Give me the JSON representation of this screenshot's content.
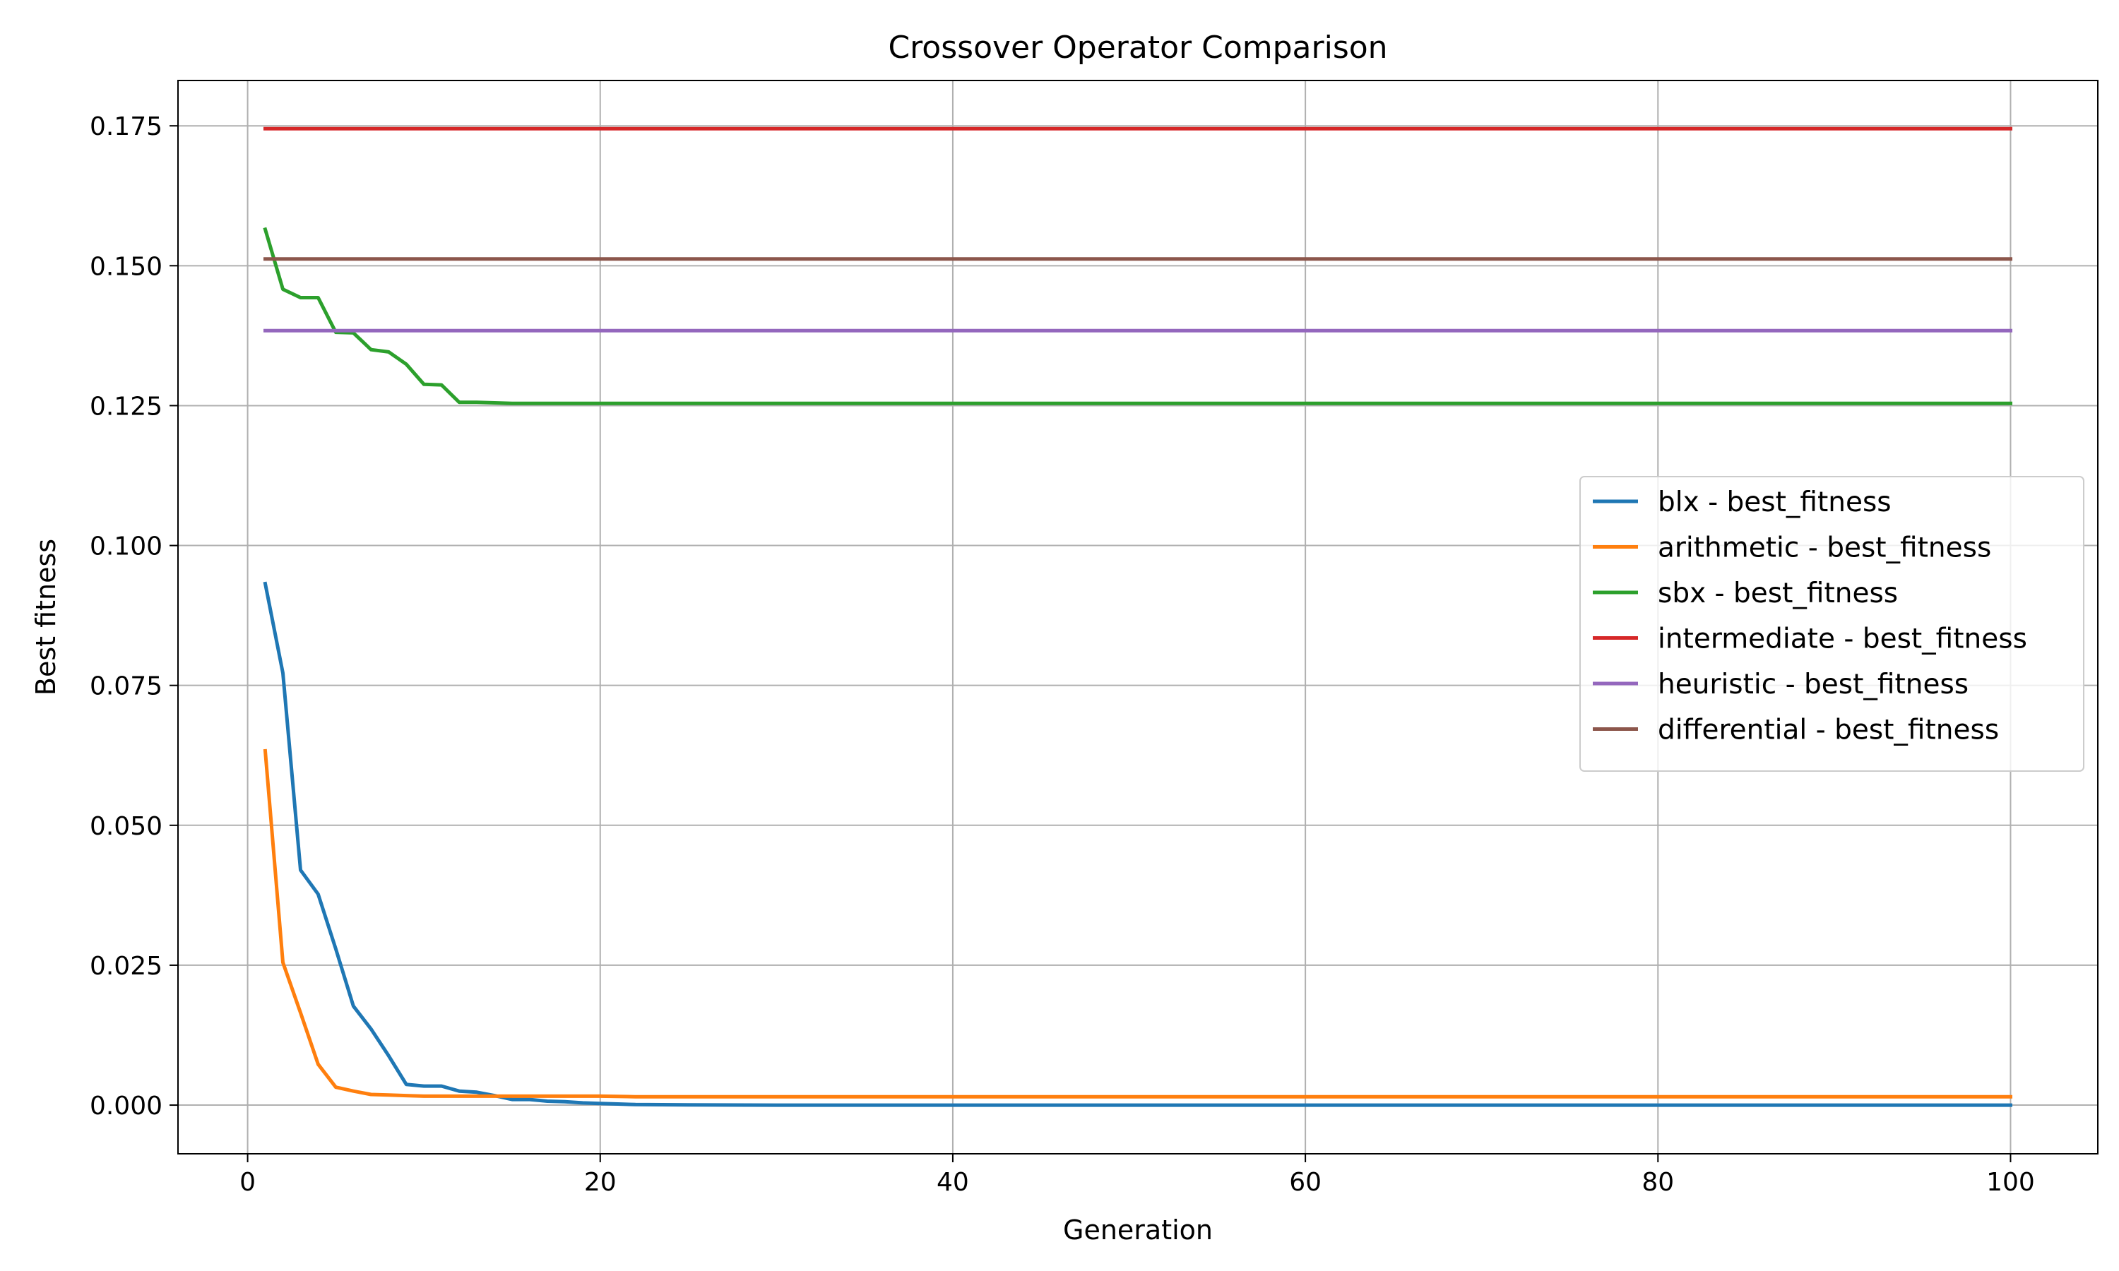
{
  "chart_data": {
    "type": "line",
    "title": "Crossover Operator Comparison",
    "xlabel": "Generation",
    "ylabel": "Best fitness",
    "xlim": [
      -3.95,
      104.95
    ],
    "ylim": [
      -0.0087,
      0.1831
    ],
    "xticks": [
      0,
      20,
      40,
      60,
      80,
      100
    ],
    "xtick_labels": [
      "0",
      "20",
      "40",
      "60",
      "80",
      "100"
    ],
    "yticks": [
      0.0,
      0.025,
      0.05,
      0.075,
      0.1,
      0.125,
      0.15,
      0.175
    ],
    "ytick_labels": [
      "0.000",
      "0.025",
      "0.050",
      "0.075",
      "0.100",
      "0.125",
      "0.150",
      "0.175"
    ],
    "grid": true,
    "legend_position": "center-right",
    "series": [
      {
        "name": "blx - best_fitness",
        "color": "#1f77b4",
        "x": [
          1,
          2,
          3,
          4,
          5,
          6,
          7,
          8,
          9,
          10,
          11,
          12,
          13,
          14,
          15,
          16,
          17,
          18,
          19,
          20,
          21,
          22,
          25,
          30,
          40,
          60,
          80,
          100
        ],
        "y": [
          0.0932,
          0.0772,
          0.042,
          0.0377,
          0.0279,
          0.0177,
          0.0136,
          0.0088,
          0.0037,
          0.0034,
          0.0034,
          0.0025,
          0.0023,
          0.0017,
          0.001,
          0.001,
          0.0007,
          0.0006,
          0.0004,
          0.0003,
          0.0002,
          0.0001,
          5e-05,
          0.0,
          0.0,
          0.0,
          0.0,
          0.0
        ]
      },
      {
        "name": "arithmetic - best_fitness",
        "color": "#ff7f0e",
        "x": [
          1,
          2,
          3,
          4,
          5,
          6,
          7,
          8,
          9,
          10,
          12,
          14,
          16,
          18,
          20,
          22,
          25,
          30,
          40,
          60,
          80,
          100
        ],
        "y": [
          0.0633,
          0.0255,
          0.0165,
          0.0073,
          0.0032,
          0.0025,
          0.0019,
          0.0018,
          0.0017,
          0.0016,
          0.0016,
          0.0016,
          0.0016,
          0.0016,
          0.0016,
          0.0015,
          0.0015,
          0.0015,
          0.0015,
          0.0015,
          0.0015,
          0.0015
        ]
      },
      {
        "name": "sbx - best_fitness",
        "color": "#2ca02c",
        "x": [
          1,
          2,
          3,
          4,
          5,
          6,
          7,
          8,
          9,
          10,
          11,
          12,
          13,
          14,
          15,
          20,
          30,
          40,
          60,
          80,
          100
        ],
        "y": [
          0.1565,
          0.1458,
          0.1443,
          0.1443,
          0.1381,
          0.138,
          0.135,
          0.1346,
          0.1324,
          0.1288,
          0.1287,
          0.1256,
          0.1256,
          0.1255,
          0.1254,
          0.1254,
          0.1254,
          0.1254,
          0.1254,
          0.1254,
          0.1254
        ]
      },
      {
        "name": "intermediate - best_fitness",
        "color": "#d62728",
        "x": [
          1,
          100
        ],
        "y": [
          0.1745,
          0.1745
        ]
      },
      {
        "name": "heuristic - best_fitness",
        "color": "#9467bd",
        "x": [
          1,
          100
        ],
        "y": [
          0.1384,
          0.1384
        ]
      },
      {
        "name": "differential - best_fitness",
        "color": "#8c564b",
        "x": [
          1,
          100
        ],
        "y": [
          0.1512,
          0.1512
        ]
      }
    ]
  }
}
